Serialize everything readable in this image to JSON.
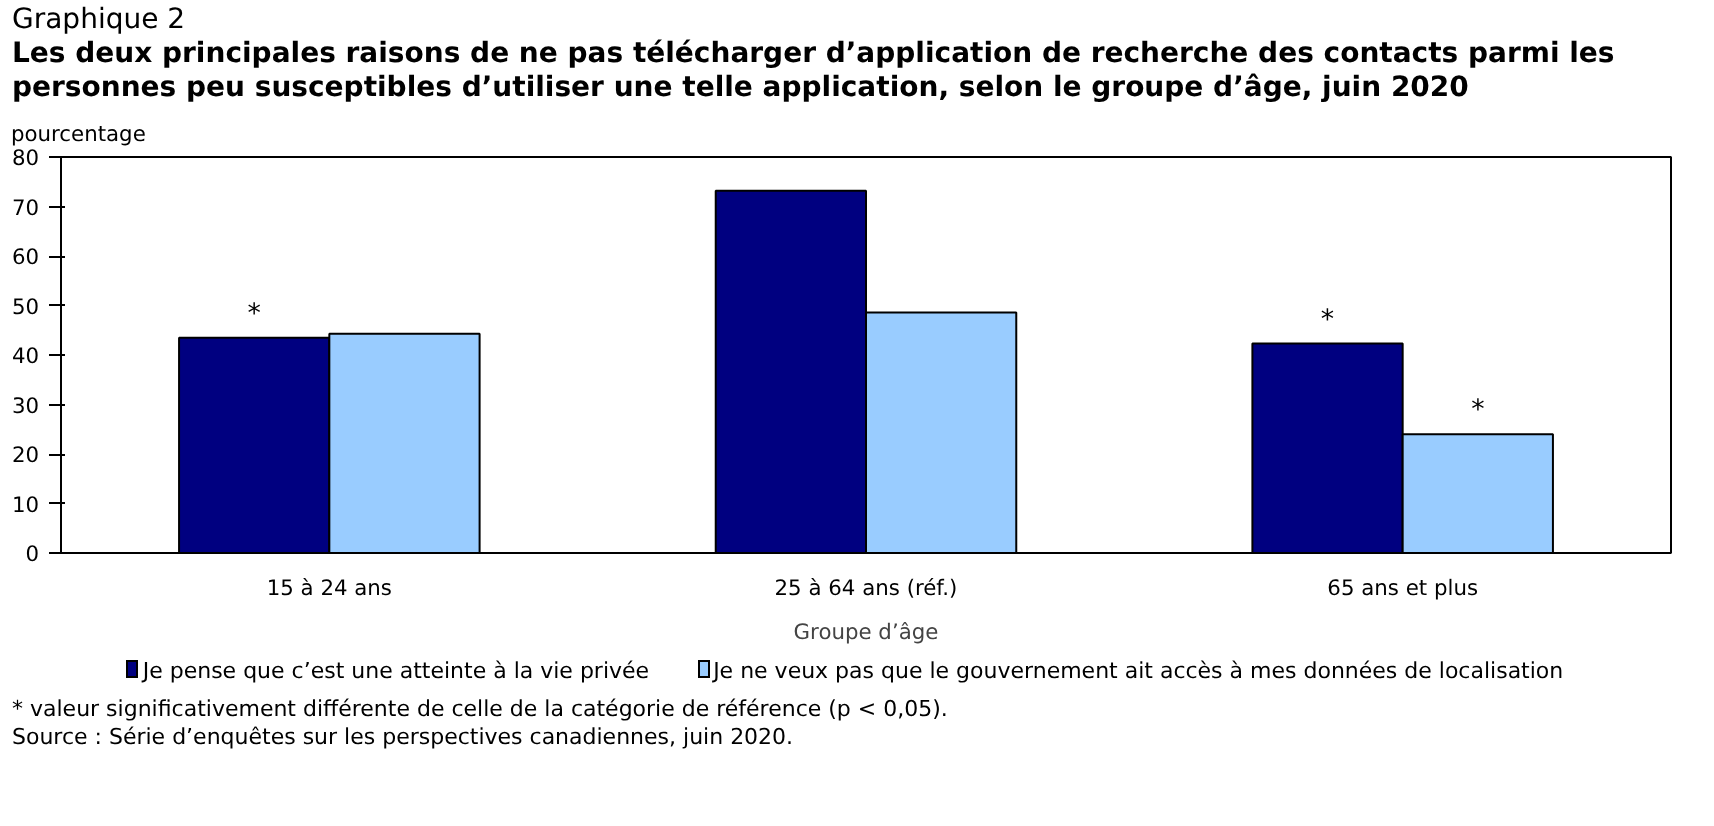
{
  "chart_data": {
    "type": "bar",
    "title": "Graphique 2",
    "subtitle": "Les deux principales raisons de ne pas télécharger d’application de recherche des contacts parmi les personnes peu susceptibles d’utiliser une telle application, selon le groupe d’âge, juin 2020",
    "ylabel": "pourcentage",
    "xlabel": "Groupe d’âge",
    "categories": [
      "15 à 24 ans",
      "25 à 64 ans (réf.)",
      "65 ans et plus"
    ],
    "series": [
      {
        "name": "Je pense que c’est une atteinte à la vie privée",
        "color": "#000080",
        "values": [
          43.5,
          73.2,
          42.3
        ]
      },
      {
        "name": "Je ne veux pas que le gouvernement ait accès à mes données de localisation",
        "color": "#99ccff",
        "values": [
          44.3,
          48.6,
          24.0
        ]
      }
    ],
    "ylim": [
      0,
      80
    ],
    "yticks": [
      0,
      10,
      20,
      30,
      40,
      50,
      60,
      70,
      80
    ],
    "grid": false,
    "legend": "bottom",
    "annotations": [
      {
        "text": "*",
        "x": "15 à 24 ans",
        "y": 43.5
      },
      {
        "text": "*",
        "x": "65 ans et plus",
        "y": 42.3
      },
      {
        "text": "*",
        "x": "65 ans et plus",
        "y": 24.0
      },
      "* valeur significativement différente de celle de la catégorie de référence (p < 0,05).",
      "Source : Série d’enquêtes sur les perspectives canadiennes, juin 2020."
    ]
  }
}
